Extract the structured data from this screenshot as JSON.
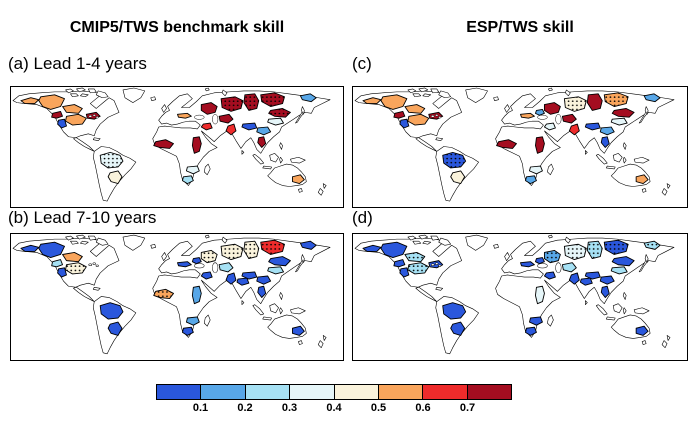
{
  "figure": {
    "column_titles": {
      "left": "CMIP5/TWS benchmark skill",
      "right": "ESP/TWS skill"
    },
    "background_color": "#ffffff",
    "map_border_color": "#000000"
  },
  "chart_data": {
    "type": "heatmap",
    "subtype": "choropleth world maps of river-basin skill",
    "layout": "2x2 panels; left column CMIP5/TWS benchmark skill, right column ESP/TWS skill; top row lead 1-4 years, bottom row lead 7-10 years",
    "colorbar": {
      "position": "bottom center",
      "ticks": [
        "0.1",
        "0.2",
        "0.3",
        "0.4",
        "0.5",
        "0.6",
        "0.7"
      ],
      "colors": [
        "#2a57dc",
        "#58a7e8",
        "#a6e1f4",
        "#e6f6f9",
        "#faf3dc",
        "#f9a55c",
        "#ee2b2b",
        "#a40d20"
      ],
      "bin_ranges": [
        "<0.1",
        "0.1-0.2",
        "0.2-0.3",
        "0.3-0.4",
        "0.4-0.5",
        "0.5-0.6",
        "0.6-0.7",
        ">0.7"
      ]
    },
    "stippling_note": "some basins carry black dot stippling",
    "basin_value_format": "[color_bin_index_0_to_7, stippled_0_or_1]",
    "panels": [
      {
        "id": "a",
        "label": "(a) Lead 1-4 years",
        "column": "CMIP5/TWS benchmark skill",
        "basins": {
          "yukon": [
            5,
            0
          ],
          "mackenzie": [
            5,
            0
          ],
          "nelson": [
            5,
            0
          ],
          "columbia": [
            7,
            0
          ],
          "colorado": [
            0,
            0
          ],
          "missouri": [
            5,
            0
          ],
          "greatlakes": [
            7,
            0
          ],
          "amazon": [
            3,
            1
          ],
          "parana": [
            4,
            0
          ],
          "niger": [
            7,
            0
          ],
          "nile": [
            7,
            0
          ],
          "zambezi": [
            3,
            0
          ],
          "orange": [
            2,
            0
          ],
          "danube": [
            5,
            0
          ],
          "volga": [
            7,
            0
          ],
          "ob": [
            7,
            1
          ],
          "yenisei": [
            7,
            1
          ],
          "lena": [
            7,
            1
          ],
          "kolyma": [
            1,
            0
          ],
          "amur": [
            7,
            1
          ],
          "aral": [
            7,
            0
          ],
          "tigris": [
            6,
            0
          ],
          "indus": [
            6,
            0
          ],
          "tibet": [
            0,
            0
          ],
          "yangtze": [
            1,
            0
          ],
          "yellow": [
            3,
            0
          ],
          "mekong": [
            7,
            0
          ],
          "murray": [
            5,
            0
          ]
        }
      },
      {
        "id": "c",
        "label": "(c)",
        "column": "ESP/TWS skill",
        "basins": {
          "yukon": [
            5,
            0
          ],
          "mackenzie": [
            5,
            0
          ],
          "nelson": [
            5,
            0
          ],
          "columbia": [
            7,
            0
          ],
          "colorado": [
            0,
            0
          ],
          "missouri": [
            5,
            0
          ],
          "greatlakes": [
            7,
            0
          ],
          "amazon": [
            0,
            1
          ],
          "parana": [
            4,
            0
          ],
          "niger": [
            7,
            0
          ],
          "nile": [
            7,
            0
          ],
          "zambezi": [
            3,
            0
          ],
          "orange": [
            1,
            0
          ],
          "danube": [
            5,
            0
          ],
          "dnieper": [
            1,
            0
          ],
          "volga": [
            7,
            0
          ],
          "ob": [
            4,
            1
          ],
          "yenisei": [
            7,
            0
          ],
          "lena": [
            5,
            1
          ],
          "kolyma": [
            1,
            0
          ],
          "amur": [
            7,
            0
          ],
          "aral": [
            7,
            0
          ],
          "tigris": [
            3,
            0
          ],
          "indus": [
            6,
            0
          ],
          "tibet": [
            0,
            0
          ],
          "yangtze": [
            1,
            0
          ],
          "yellow": [
            3,
            0
          ],
          "mekong": [
            0,
            0
          ],
          "murray": [
            5,
            0
          ]
        }
      },
      {
        "id": "b",
        "label": "(b) Lead 7-10 years",
        "column": "CMIP5/TWS benchmark skill",
        "basins": {
          "yukon": [
            0,
            0
          ],
          "mackenzie": [
            0,
            0
          ],
          "nelson": [
            5,
            0
          ],
          "columbia": [
            2,
            0
          ],
          "colorado": [
            0,
            0
          ],
          "missouri": [
            4,
            1
          ],
          "amazon": [
            0,
            0
          ],
          "parana": [
            0,
            0
          ],
          "niger": [
            5,
            1
          ],
          "nile": [
            1,
            0
          ],
          "zambezi": [
            1,
            0
          ],
          "orange": [
            0,
            0
          ],
          "danube": [
            0,
            0
          ],
          "dnieper": [
            0,
            0
          ],
          "volga": [
            4,
            1
          ],
          "ob": [
            4,
            1
          ],
          "yenisei": [
            4,
            1
          ],
          "lena": [
            6,
            1
          ],
          "kolyma": [
            0,
            0
          ],
          "amur": [
            0,
            0
          ],
          "aral": [
            2,
            0
          ],
          "tigris": [
            0,
            0
          ],
          "indus": [
            0,
            0
          ],
          "ganges": [
            0,
            0
          ],
          "tibet": [
            0,
            0
          ],
          "yangtze": [
            0,
            0
          ],
          "yellow": [
            2,
            0
          ],
          "mekong": [
            0,
            0
          ],
          "murray": [
            0,
            0
          ]
        }
      },
      {
        "id": "d",
        "label": "(d)",
        "column": "ESP/TWS skill",
        "basins": {
          "yukon": [
            0,
            0
          ],
          "mackenzie": [
            0,
            0
          ],
          "nelson": [
            2,
            1
          ],
          "columbia": [
            0,
            0
          ],
          "colorado": [
            0,
            0
          ],
          "missouri": [
            2,
            1
          ],
          "greatlakes": [
            0,
            0
          ],
          "amazon": [
            0,
            0
          ],
          "parana": [
            0,
            0
          ],
          "nile": [
            3,
            0
          ],
          "zambezi": [
            0,
            0
          ],
          "orange": [
            0,
            0
          ],
          "danube": [
            0,
            0
          ],
          "dnieper": [
            0,
            0
          ],
          "volga": [
            1,
            1
          ],
          "ob": [
            3,
            1
          ],
          "yenisei": [
            2,
            1
          ],
          "lena": [
            0,
            1
          ],
          "kolyma": [
            2,
            1
          ],
          "amur": [
            0,
            0
          ],
          "aral": [
            2,
            0
          ],
          "tigris": [
            0,
            0
          ],
          "indus": [
            0,
            0
          ],
          "ganges": [
            0,
            0
          ],
          "tibet": [
            0,
            0
          ],
          "yangtze": [
            0,
            0
          ],
          "yellow": [
            2,
            0
          ],
          "mekong": [
            0,
            0
          ],
          "murray": [
            0,
            0
          ]
        }
      }
    ]
  }
}
